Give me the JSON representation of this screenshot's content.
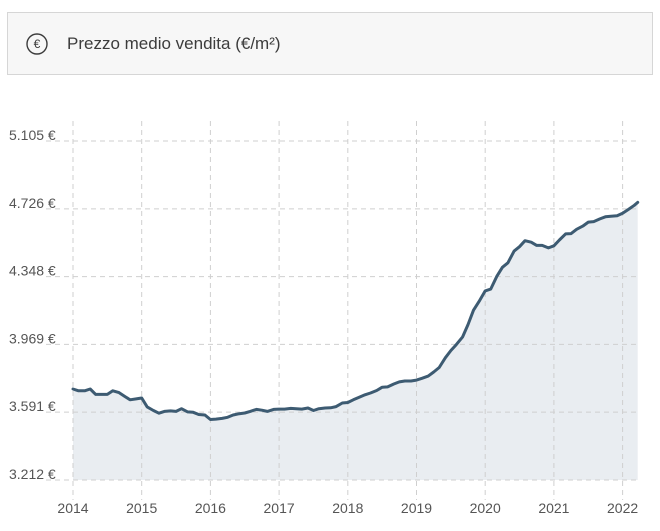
{
  "header": {
    "title": "Prezzo medio vendita (€/m²)",
    "icon": "euro-icon"
  },
  "colors": {
    "line": "#3d5b72",
    "area": "#e9edf1",
    "grid": "#cfcfcf",
    "text": "#555555"
  },
  "chart_data": {
    "type": "area",
    "title": "Prezzo medio vendita (€/m²)",
    "xlabel": "",
    "ylabel": "",
    "x_ticks": [
      "2014",
      "2015",
      "2016",
      "2017",
      "2018",
      "2019",
      "2020",
      "2021",
      "2022"
    ],
    "y_ticks": [
      "3.212 €",
      "3.591 €",
      "3.969 €",
      "4.348 €",
      "4.726 €",
      "5.105 €"
    ],
    "y_tick_values": [
      3212,
      3591,
      3969,
      4348,
      4726,
      5105
    ],
    "xlim": [
      2014.0,
      2022.22
    ],
    "ylim": [
      3212,
      5105
    ],
    "grid": true,
    "series": [
      {
        "values": [
          [
            2014.0,
            3720
          ],
          [
            2014.08,
            3710
          ],
          [
            2014.17,
            3710
          ],
          [
            2014.25,
            3720
          ],
          [
            2014.33,
            3690
          ],
          [
            2014.42,
            3690
          ],
          [
            2014.5,
            3690
          ],
          [
            2014.58,
            3710
          ],
          [
            2014.67,
            3700
          ],
          [
            2014.75,
            3680
          ],
          [
            2014.83,
            3660
          ],
          [
            2014.92,
            3665
          ],
          [
            2015.0,
            3670
          ],
          [
            2015.08,
            3620
          ],
          [
            2015.17,
            3600
          ],
          [
            2015.25,
            3585
          ],
          [
            2015.33,
            3595
          ],
          [
            2015.42,
            3598
          ],
          [
            2015.5,
            3595
          ],
          [
            2015.58,
            3610
          ],
          [
            2015.67,
            3592
          ],
          [
            2015.75,
            3590
          ],
          [
            2015.83,
            3578
          ],
          [
            2015.92,
            3575
          ],
          [
            2016.0,
            3550
          ],
          [
            2016.08,
            3552
          ],
          [
            2016.17,
            3556
          ],
          [
            2016.25,
            3562
          ],
          [
            2016.33,
            3575
          ],
          [
            2016.42,
            3582
          ],
          [
            2016.5,
            3586
          ],
          [
            2016.58,
            3595
          ],
          [
            2016.67,
            3606
          ],
          [
            2016.75,
            3602
          ],
          [
            2016.83,
            3595
          ],
          [
            2016.92,
            3606
          ],
          [
            2017.0,
            3608
          ],
          [
            2017.08,
            3608
          ],
          [
            2017.17,
            3612
          ],
          [
            2017.25,
            3610
          ],
          [
            2017.33,
            3608
          ],
          [
            2017.42,
            3614
          ],
          [
            2017.5,
            3600
          ],
          [
            2017.58,
            3610
          ],
          [
            2017.67,
            3614
          ],
          [
            2017.75,
            3615
          ],
          [
            2017.83,
            3622
          ],
          [
            2017.92,
            3642
          ],
          [
            2018.0,
            3645
          ],
          [
            2018.08,
            3660
          ],
          [
            2018.17,
            3675
          ],
          [
            2018.25,
            3688
          ],
          [
            2018.33,
            3698
          ],
          [
            2018.42,
            3712
          ],
          [
            2018.5,
            3730
          ],
          [
            2018.58,
            3732
          ],
          [
            2018.67,
            3748
          ],
          [
            2018.75,
            3760
          ],
          [
            2018.83,
            3765
          ],
          [
            2018.92,
            3765
          ],
          [
            2019.0,
            3770
          ],
          [
            2019.08,
            3780
          ],
          [
            2019.17,
            3792
          ],
          [
            2019.25,
            3815
          ],
          [
            2019.33,
            3840
          ],
          [
            2019.42,
            3895
          ],
          [
            2019.5,
            3935
          ],
          [
            2019.58,
            3968
          ],
          [
            2019.67,
            4010
          ],
          [
            2019.75,
            4080
          ],
          [
            2019.83,
            4160
          ],
          [
            2019.92,
            4215
          ],
          [
            2020.0,
            4268
          ],
          [
            2020.08,
            4278
          ],
          [
            2020.17,
            4350
          ],
          [
            2020.25,
            4400
          ],
          [
            2020.33,
            4425
          ],
          [
            2020.42,
            4490
          ],
          [
            2020.5,
            4515
          ],
          [
            2020.58,
            4548
          ],
          [
            2020.67,
            4540
          ],
          [
            2020.75,
            4522
          ],
          [
            2020.83,
            4522
          ],
          [
            2020.92,
            4508
          ],
          [
            2021.0,
            4520
          ],
          [
            2021.08,
            4552
          ],
          [
            2021.17,
            4586
          ],
          [
            2021.25,
            4588
          ],
          [
            2021.33,
            4612
          ],
          [
            2021.42,
            4630
          ],
          [
            2021.5,
            4652
          ],
          [
            2021.58,
            4655
          ],
          [
            2021.67,
            4670
          ],
          [
            2021.75,
            4682
          ],
          [
            2021.83,
            4685
          ],
          [
            2021.92,
            4688
          ],
          [
            2022.0,
            4702
          ],
          [
            2022.08,
            4722
          ],
          [
            2022.17,
            4746
          ],
          [
            2022.22,
            4762
          ]
        ]
      }
    ]
  }
}
